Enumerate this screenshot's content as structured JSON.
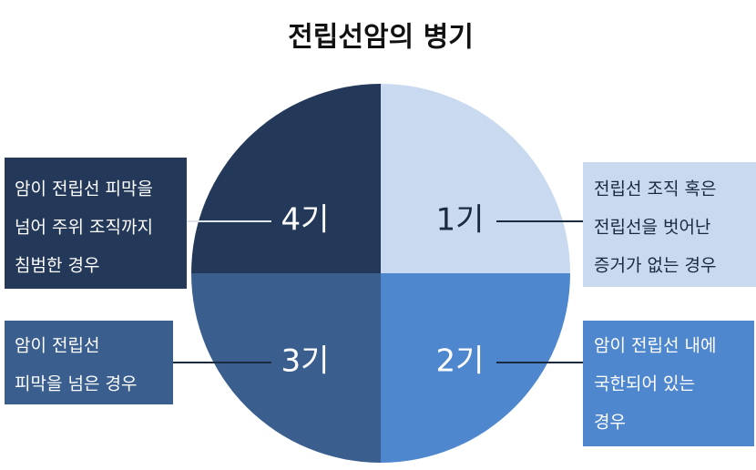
{
  "header": {
    "title": "전립선암의 병기"
  },
  "stages": [
    {
      "label": "1기",
      "lines": [
        "전립선 조직 혹은",
        "전립선을 벗어난",
        "증거가 없는 경우"
      ]
    },
    {
      "label": "2기",
      "lines": [
        "암이 전립선 내에",
        "국한되어 있는",
        "경우"
      ]
    },
    {
      "label": "3기",
      "lines": [
        "암이 전립선",
        "피막을 넘은 경우"
      ]
    },
    {
      "label": "4기",
      "lines": [
        "암이 전립선 피막을",
        "넘어 주위 조직까지",
        "침범한 경우"
      ]
    }
  ]
}
